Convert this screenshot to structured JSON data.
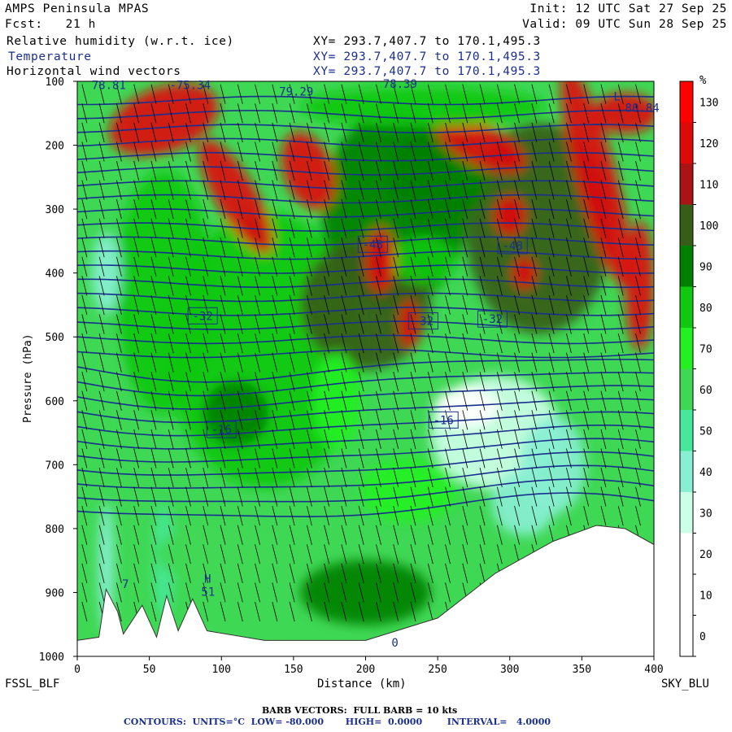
{
  "header": {
    "title": "AMPS Peninsula MPAS",
    "forecast": "Fcst:   21 h",
    "init": "Init: 12 UTC Sat 27 Sep 25",
    "valid": "Valid: 09 UTC Sun 28 Sep 25",
    "fields": [
      {
        "label": "Relative humidity (w.r.t. ice)",
        "xy": "XY= 293.7,407.7 to 170.1,495.3"
      },
      {
        "label": "Temperature",
        "xy": "XY= 293.7,407.7 to 170.1,495.3"
      },
      {
        "label": "Horizontal wind vectors",
        "xy": "XY= 293.7,407.7 to 170.1,495.3"
      }
    ]
  },
  "chart_data": {
    "type": "heatmap",
    "xlabel": "Distance (km)",
    "ylabel": "Pressure (hPa)",
    "xlim": [
      0,
      400
    ],
    "ylim": [
      1000,
      100
    ],
    "x_ticks": [
      0,
      50,
      100,
      150,
      200,
      250,
      300,
      350,
      400
    ],
    "y_ticks": [
      100,
      200,
      300,
      400,
      500,
      600,
      700,
      800,
      900,
      1000
    ],
    "endpoints": {
      "left": "FSSL_BLF",
      "right": "SKY_BLU"
    },
    "colorbar": {
      "unit": "%",
      "levels": [
        0,
        10,
        20,
        30,
        40,
        50,
        60,
        70,
        80,
        90,
        100,
        110,
        120,
        130
      ],
      "colors": [
        "#ffffff",
        "#ffffff",
        "#ffffff",
        "#ccffe8",
        "#88efd2",
        "#48e89c",
        "#3fd855",
        "#22f022",
        "#10c810",
        "#008000",
        "#385d18",
        "#aa1414",
        "#dd0a0a",
        "#ff0000"
      ]
    },
    "contour_labels": [
      {
        "text": "-48",
        "x": 205,
        "p": 355
      },
      {
        "text": "-48",
        "x": 302,
        "p": 357
      },
      {
        "text": "-32",
        "x": 87,
        "p": 467
      },
      {
        "text": "-32",
        "x": 240,
        "p": 475
      },
      {
        "text": "-32",
        "x": 288,
        "p": 472
      },
      {
        "text": "-16",
        "x": 100,
        "p": 645
      },
      {
        "text": "-16",
        "x": 254,
        "p": 630
      }
    ],
    "contours": {
      "units": "°C",
      "low": -80.0,
      "high": 0.0,
      "interval": 4.0
    },
    "annotations": [
      {
        "text": "78.81",
        "x": 10,
        "p": 112
      },
      {
        "text": "-75.34",
        "x": 64,
        "p": 112
      },
      {
        "text": "79.29",
        "x": 140,
        "p": 122
      },
      {
        "text": "78.39",
        "x": 212,
        "p": 110
      },
      {
        "text": "L",
        "x": 372,
        "p": 130
      },
      {
        "text": "80.84",
        "x": 380,
        "p": 148
      },
      {
        "text": "H",
        "x": 88,
        "p": 885
      },
      {
        "text": "51",
        "x": 86,
        "p": 905
      },
      {
        "text": "7",
        "x": 31,
        "p": 893
      },
      {
        "text": "0",
        "x": 218,
        "p": 985
      }
    ]
  },
  "footer": {
    "barbs": "BARB VECTORS:  FULL BARB = 10 kts",
    "contours": "CONTOURS:  UNITS=°C  LOW= -80.000       HIGH=  0.0000        INTERVAL=   4.0000"
  },
  "colors": {
    "contour": "#1a2f8f",
    "barb": "#000000"
  }
}
